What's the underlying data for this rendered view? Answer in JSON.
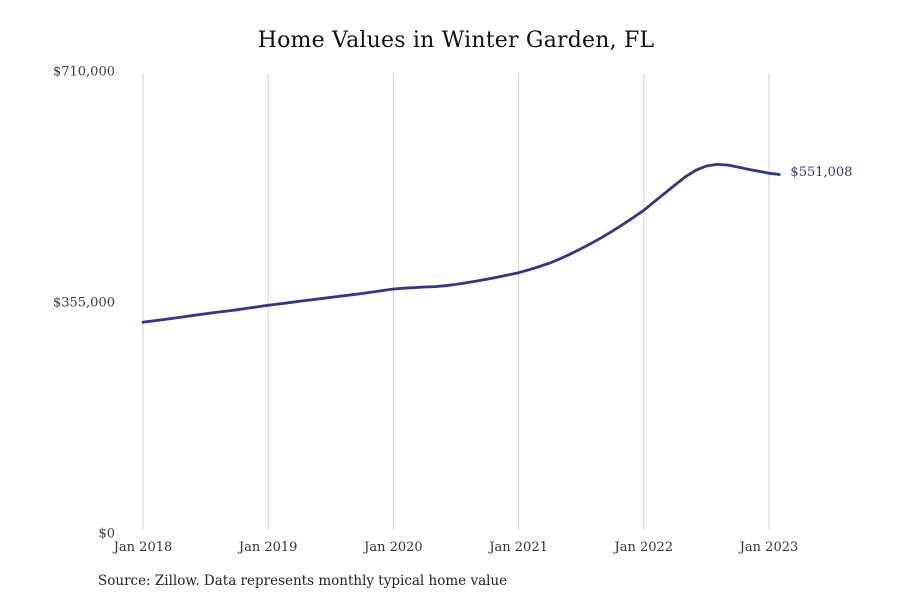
{
  "page": {
    "background": "#ffffff"
  },
  "chart_data": {
    "type": "line",
    "title": "Home Values in Winter Garden, FL",
    "source_note": "Source: Zillow. Data represents monthly typical home value",
    "end_label": "$551,008",
    "line_color": "#32329b",
    "grid_color": "#cfcfcf",
    "axis_label_color": "#3d3d3d",
    "ylim": [
      0,
      710000
    ],
    "grid": "vertical-only",
    "legend": "none",
    "x": [
      "2018-01",
      "2018-02",
      "2018-03",
      "2018-04",
      "2018-05",
      "2018-06",
      "2018-07",
      "2018-08",
      "2018-09",
      "2018-10",
      "2018-11",
      "2018-12",
      "2019-01",
      "2019-02",
      "2019-03",
      "2019-04",
      "2019-05",
      "2019-06",
      "2019-07",
      "2019-08",
      "2019-09",
      "2019-10",
      "2019-11",
      "2019-12",
      "2020-01",
      "2020-02",
      "2020-03",
      "2020-04",
      "2020-05",
      "2020-06",
      "2020-07",
      "2020-08",
      "2020-09",
      "2020-10",
      "2020-11",
      "2020-12",
      "2021-01",
      "2021-02",
      "2021-03",
      "2021-04",
      "2021-05",
      "2021-06",
      "2021-07",
      "2021-08",
      "2021-09",
      "2021-10",
      "2021-11",
      "2021-12",
      "2022-01",
      "2022-02",
      "2022-03",
      "2022-04",
      "2022-05",
      "2022-06",
      "2022-07",
      "2022-08",
      "2022-09",
      "2022-10",
      "2022-11",
      "2022-12",
      "2023-01",
      "2023-02"
    ],
    "values": [
      324000,
      326000,
      328100,
      330300,
      332500,
      334700,
      337000,
      339000,
      341000,
      343000,
      345300,
      347600,
      350000,
      352000,
      354000,
      356000,
      358000,
      360000,
      362000,
      364000,
      366000,
      368000,
      370300,
      372600,
      375000,
      376200,
      377200,
      378000,
      378600,
      380000,
      382000,
      384500,
      387200,
      390200,
      393300,
      396600,
      400000,
      404500,
      409500,
      415000,
      421500,
      429000,
      437000,
      445500,
      454500,
      464000,
      474200,
      485000,
      496000,
      509000,
      522000,
      535000,
      547500,
      557500,
      564000,
      566500,
      565500,
      562500,
      559000,
      556000,
      553000,
      551008
    ],
    "y_ticks": [
      {
        "value": 0,
        "label": "$0"
      },
      {
        "value": 355000,
        "label": "$355,000"
      },
      {
        "value": 710000,
        "label": "$710,000"
      }
    ],
    "x_ticks": [
      {
        "month": "2018-01",
        "label": "Jan 2018"
      },
      {
        "month": "2019-01",
        "label": "Jan 2019"
      },
      {
        "month": "2020-01",
        "label": "Jan 2020"
      },
      {
        "month": "2021-01",
        "label": "Jan 2021"
      },
      {
        "month": "2022-01",
        "label": "Jan 2022"
      },
      {
        "month": "2023-01",
        "label": "Jan 2023"
      }
    ]
  }
}
